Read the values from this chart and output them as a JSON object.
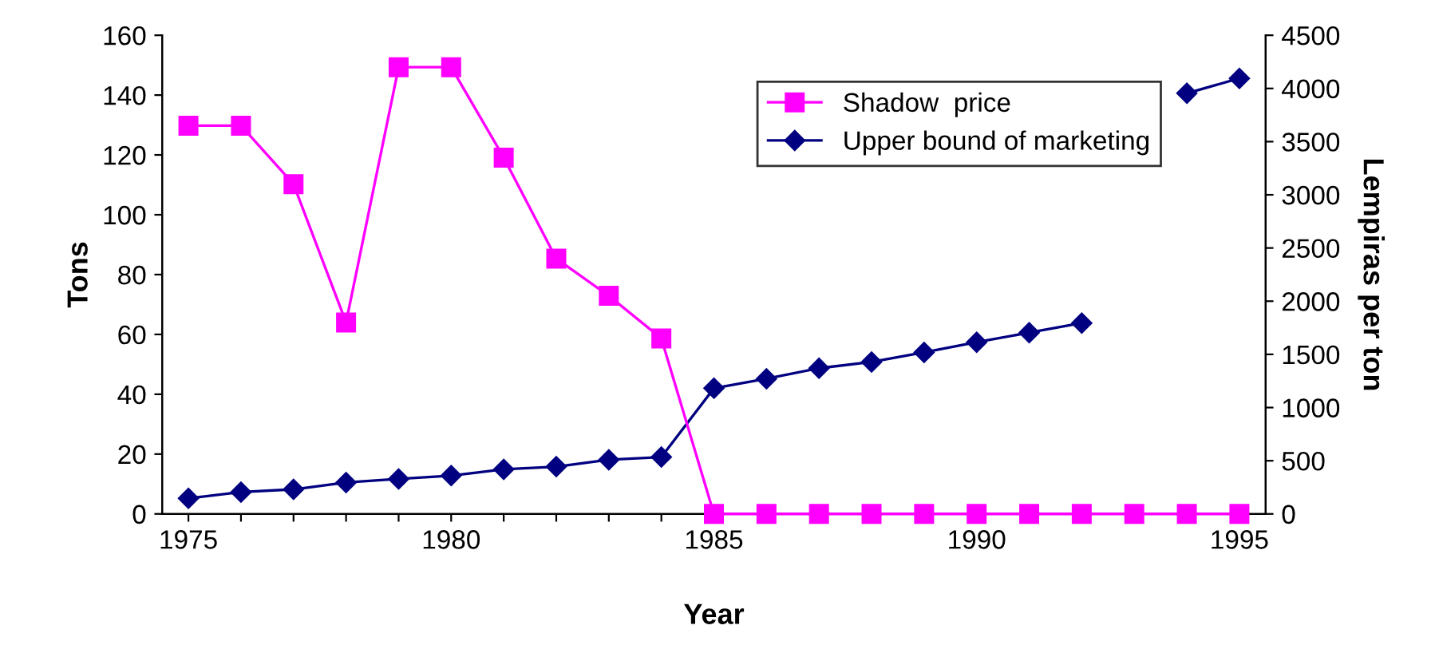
{
  "chart_data": {
    "type": "line",
    "xlabel": "Year",
    "ylabel": "Tons",
    "y2label": "Lempiras per ton",
    "x": [
      1975,
      1976,
      1977,
      1978,
      1979,
      1980,
      1981,
      1982,
      1983,
      1984,
      1985,
      1986,
      1987,
      1988,
      1989,
      1990,
      1991,
      1992,
      1993,
      1994,
      1995
    ],
    "series": [
      {
        "name": "Shadow  price",
        "color": "#ff00ff",
        "marker": "square",
        "axis": "y2",
        "values": [
          3650,
          3650,
          3100,
          1800,
          4200,
          4200,
          3350,
          2400,
          2050,
          1650,
          0,
          0,
          0,
          0,
          0,
          0,
          0,
          0,
          0,
          0,
          0
        ]
      },
      {
        "name": "Upper bound of marketing",
        "color": "#000080",
        "marker": "diamond",
        "values": [
          5.2,
          7.3,
          8.2,
          10.5,
          11.7,
          12.8,
          14.9,
          15.8,
          18.1,
          19,
          42,
          45.2,
          48.7,
          50.8,
          54,
          57.4,
          60.6,
          63.8,
          null,
          140.6,
          145.6
        ]
      }
    ],
    "xlim": [
      1974.5,
      1995.5
    ],
    "xticks": [
      1975,
      {
        "value": 1976,
        "label": null
      },
      {
        "value": 1977,
        "label": null
      },
      {
        "value": 1978,
        "label": null
      },
      {
        "value": 1979,
        "label": null
      },
      1980,
      {
        "value": 1981,
        "label": null
      },
      {
        "value": 1982,
        "label": null
      },
      {
        "value": 1983,
        "label": null
      },
      {
        "value": 1984,
        "label": null
      },
      1985,
      {
        "value": 1986,
        "label": null
      },
      {
        "value": 1987,
        "label": null
      },
      {
        "value": 1988,
        "label": null
      },
      {
        "value": 1989,
        "label": null
      },
      1990,
      {
        "value": 1991,
        "label": null
      },
      {
        "value": 1992,
        "label": null
      },
      {
        "value": 1993,
        "label": null
      },
      {
        "value": 1994,
        "label": null
      },
      1995
    ],
    "ylim": [
      0,
      160
    ],
    "yticks": [
      0,
      20,
      40,
      60,
      80,
      100,
      120,
      140,
      160
    ],
    "y2lim": [
      0,
      4500
    ],
    "y2ticks": [
      0,
      500,
      1000,
      1500,
      2000,
      2500,
      3000,
      3500,
      4000,
      4500
    ],
    "grid": false,
    "legend": "top right",
    "line_style": "solid"
  }
}
